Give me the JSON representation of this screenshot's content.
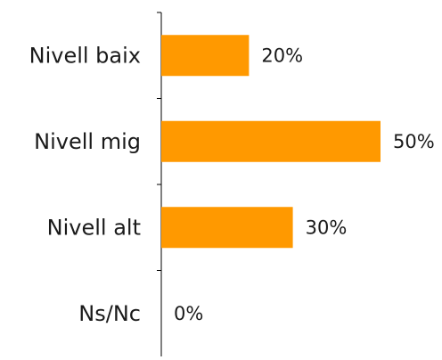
{
  "chart_data": {
    "type": "bar",
    "orientation": "horizontal",
    "title": "",
    "xlabel": "",
    "ylabel": "",
    "categories": [
      "Nivell baix",
      "Nivell mig",
      "Nivell alt",
      "Ns/Nc"
    ],
    "values": [
      20,
      50,
      30,
      0
    ],
    "value_labels": [
      "20%",
      "50%",
      "30%",
      "0%"
    ],
    "xlim": [
      0,
      50
    ],
    "grid": false,
    "legend": "none",
    "bar_color": "#FF9900",
    "axis_color": "#000000"
  }
}
